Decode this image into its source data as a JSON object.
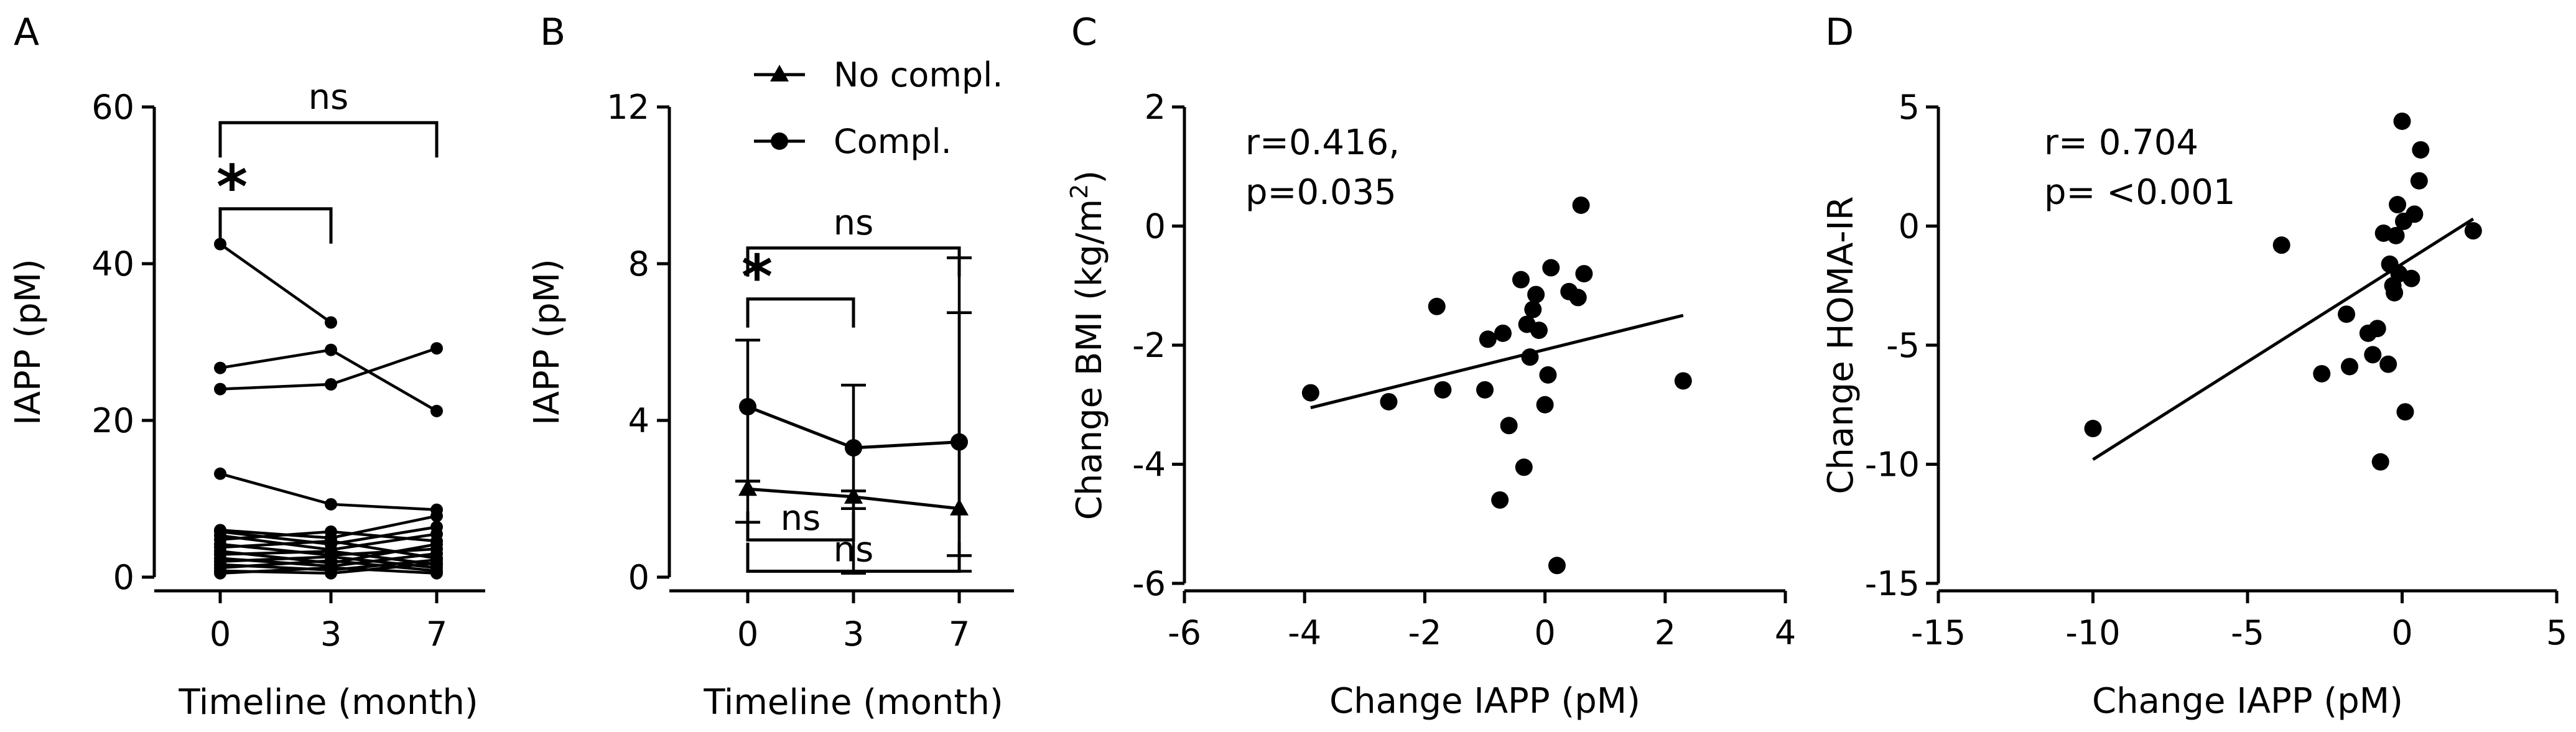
{
  "chart_data": [
    {
      "panel": "A",
      "type": "line",
      "xlabel": "Timeline (month)",
      "ylabel": "IAPP (pM)",
      "categories": [
        "0",
        "3",
        "7"
      ],
      "ylim": [
        0,
        60
      ],
      "yticks": [
        "0",
        "20",
        "40",
        "60"
      ],
      "series": [
        [
          42.5,
          32.5,
          null
        ],
        [
          26.7,
          29.0,
          21.2
        ],
        [
          24.0,
          24.6,
          29.2
        ],
        [
          13.2,
          9.3,
          8.6
        ],
        [
          6.0,
          5.0,
          7.8
        ],
        [
          5.8,
          4.2,
          6.4
        ],
        [
          5.3,
          3.5,
          5.5
        ],
        [
          4.8,
          5.8,
          4.6
        ],
        [
          4.2,
          2.8,
          3.6
        ],
        [
          3.8,
          4.6,
          2.4
        ],
        [
          3.3,
          1.8,
          4.2
        ],
        [
          2.9,
          3.3,
          1.6
        ],
        [
          2.4,
          1.4,
          3.0
        ],
        [
          2.0,
          2.6,
          1.2
        ],
        [
          1.6,
          0.9,
          2.2
        ],
        [
          1.2,
          2.1,
          0.8
        ],
        [
          0.8,
          0.5,
          1.8
        ],
        [
          0.5,
          1.2,
          0.5
        ]
      ],
      "brackets": [
        {
          "from": "0",
          "to": "7",
          "label": "ns",
          "y": 58
        },
        {
          "from": "0",
          "to": "3",
          "label": "*",
          "y": 47
        }
      ]
    },
    {
      "panel": "B",
      "type": "line",
      "xlabel": "Timeline (month)",
      "ylabel": "IAPP (pM)",
      "categories": [
        "0",
        "3",
        "7"
      ],
      "ylim": [
        0,
        12
      ],
      "yticks": [
        "0",
        "4",
        "8",
        "12"
      ],
      "series": [
        {
          "name": "No compl.",
          "marker": "triangle",
          "values": [
            2.25,
            2.05,
            1.75
          ],
          "err_lo": [
            0.85,
            0.3,
            1.2
          ],
          "err_hi": [
            0.2,
            0.15,
            5.0
          ]
        },
        {
          "name": "Compl.",
          "marker": "circle",
          "values": [
            4.35,
            3.3,
            3.45
          ],
          "err_lo": [
            1.9,
            3.2,
            3.3
          ],
          "err_hi": [
            1.7,
            1.6,
            4.7
          ]
        }
      ],
      "brackets": [
        {
          "from": "0",
          "to": "7",
          "label": "ns",
          "y": 8.4
        },
        {
          "from": "0",
          "to": "3",
          "label": "*",
          "y": 7.1
        },
        {
          "from": "0",
          "to": "3",
          "label": "ns",
          "y": 0.95,
          "inverted": true
        },
        {
          "from": "0",
          "to": "7",
          "label": "ns",
          "y": 0.15,
          "inverted": true
        }
      ]
    },
    {
      "panel": "C",
      "type": "scatter",
      "xlabel": "Change IAPP (pM)",
      "ylabel": "Change BMI (kg/m",
      "ylabel_sup": "2",
      "ylabel_end": ")",
      "xlim": [
        -6,
        4
      ],
      "ylim": [
        -6,
        2
      ],
      "xticks": [
        "-6",
        "-4",
        "-2",
        "0",
        "2",
        "4"
      ],
      "yticks": [
        "-6",
        "-4",
        "-2",
        "0",
        "2"
      ],
      "annotation": [
        "r=0.416,",
        "p=0.035"
      ],
      "points": [
        [
          -3.9,
          -2.8
        ],
        [
          -2.6,
          -2.95
        ],
        [
          -1.8,
          -1.35
        ],
        [
          -1.7,
          -2.75
        ],
        [
          -1.0,
          -2.75
        ],
        [
          -0.95,
          -1.9
        ],
        [
          -0.75,
          -4.6
        ],
        [
          -0.7,
          -1.8
        ],
        [
          -0.6,
          -3.35
        ],
        [
          -0.4,
          -0.9
        ],
        [
          -0.35,
          -4.05
        ],
        [
          -0.3,
          -1.65
        ],
        [
          -0.25,
          -2.2
        ],
        [
          -0.2,
          -1.4
        ],
        [
          -0.15,
          -1.15
        ],
        [
          -0.1,
          -1.75
        ],
        [
          0.0,
          -3.0
        ],
        [
          0.05,
          -2.5
        ],
        [
          0.1,
          -0.7
        ],
        [
          0.2,
          -5.7
        ],
        [
          0.4,
          -1.1
        ],
        [
          0.55,
          -1.2
        ],
        [
          0.6,
          0.35
        ],
        [
          0.65,
          -0.8
        ],
        [
          2.3,
          -2.6
        ]
      ],
      "regression": {
        "x": [
          -3.9,
          2.3
        ],
        "y": [
          -3.05,
          -1.5
        ]
      }
    },
    {
      "panel": "D",
      "type": "scatter",
      "xlabel": "Change IAPP (pM)",
      "ylabel": "Change HOMA-IR",
      "xlim": [
        -15,
        5
      ],
      "ylim": [
        -15,
        5
      ],
      "xticks": [
        "-15",
        "-10",
        "-5",
        "0",
        "5"
      ],
      "yticks": [
        "-15",
        "-10",
        "-5",
        "0",
        "5"
      ],
      "annotation": [
        "r= 0.704",
        "p= <0.001"
      ],
      "points": [
        [
          -10.0,
          -8.5
        ],
        [
          -3.9,
          -0.8
        ],
        [
          -2.6,
          -6.2
        ],
        [
          -1.8,
          -3.7
        ],
        [
          -1.7,
          -5.9
        ],
        [
          -1.1,
          -4.5
        ],
        [
          -0.95,
          -5.4
        ],
        [
          -0.8,
          -4.3
        ],
        [
          -0.7,
          -9.9
        ],
        [
          -0.6,
          -0.3
        ],
        [
          -0.45,
          -5.8
        ],
        [
          -0.4,
          -1.6
        ],
        [
          -0.3,
          -2.5
        ],
        [
          -0.25,
          -2.8
        ],
        [
          -0.2,
          -0.4
        ],
        [
          -0.15,
          0.9
        ],
        [
          -0.1,
          -2.0
        ],
        [
          0.0,
          4.4
        ],
        [
          0.05,
          0.2
        ],
        [
          0.1,
          -7.8
        ],
        [
          0.3,
          -2.2
        ],
        [
          0.4,
          0.5
        ],
        [
          0.55,
          1.9
        ],
        [
          0.6,
          3.2
        ],
        [
          2.3,
          -0.2
        ]
      ],
      "regression": {
        "x": [
          -10.0,
          2.3
        ],
        "y": [
          -9.8,
          0.3
        ]
      }
    }
  ],
  "legend": {
    "no_compl": "No compl.",
    "compl": "Compl."
  }
}
